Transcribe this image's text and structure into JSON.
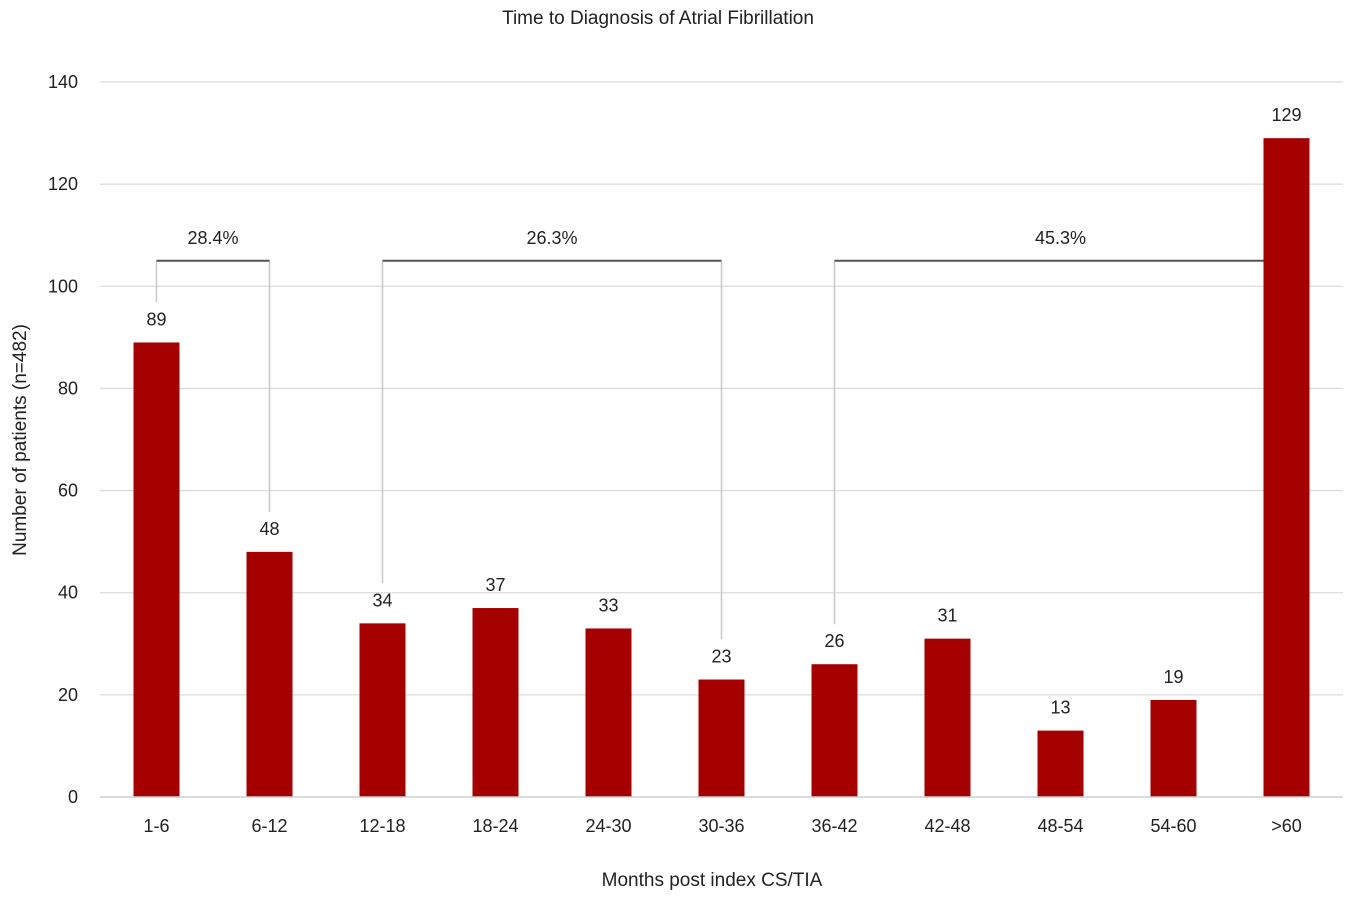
{
  "chart_data": {
    "type": "bar",
    "title": "Time to Diagnosis of Atrial Fibrillation",
    "xlabel": "Months post index CS/TIA",
    "ylabel": "Number of patients (n=482)",
    "categories": [
      "1-6",
      "6-12",
      "12-18",
      "18-24",
      "24-30",
      "30-36",
      "36-42",
      "42-48",
      "48-54",
      "54-60",
      ">60"
    ],
    "values": [
      89,
      48,
      34,
      37,
      33,
      23,
      26,
      31,
      13,
      19,
      129
    ],
    "data_labels": [
      "89",
      "48",
      "34",
      "37",
      "33",
      "23",
      "26",
      "31",
      "13",
      "19",
      "129"
    ],
    "ylim": [
      0,
      140
    ],
    "yticks": [
      0,
      20,
      40,
      60,
      80,
      100,
      120,
      140
    ],
    "grid": true,
    "bar_color": "#a50000",
    "brackets": [
      {
        "label": "28.4%",
        "from_index": 0,
        "to_index": 1,
        "level": 105
      },
      {
        "label": "26.3%",
        "from_index": 2,
        "to_index": 5,
        "level": 105
      },
      {
        "label": "45.3%",
        "from_index": 6,
        "to_index": 10,
        "level": 105
      }
    ]
  }
}
